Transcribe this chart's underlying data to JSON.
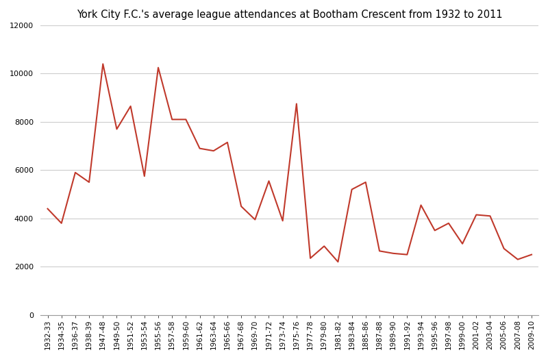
{
  "title": "York City F.C.'s average league attendances at Bootham Crescent from 1932 to 2011",
  "x_labels": [
    "1932-33",
    "1934-35",
    "1936-37",
    "1938-39",
    "1947-48",
    "1949-50",
    "1951-52",
    "1953-54",
    "1955-56",
    "1957-58",
    "1959-60",
    "1961-62",
    "1963-64",
    "1965-66",
    "1967-68",
    "1969-70",
    "1971-72",
    "1973-74",
    "1975-76",
    "1977-78",
    "1979-80",
    "1981-82",
    "1983-84",
    "1885-86",
    "1987-88",
    "1989-90",
    "1991-92",
    "1993-94",
    "1995-96",
    "1997-98",
    "1999-00",
    "2001-02",
    "2003-04",
    "2005-06",
    "2007-08",
    "2009-10"
  ],
  "attendances": [
    4400,
    3800,
    5900,
    5500,
    10400,
    7700,
    8650,
    5750,
    10250,
    8100,
    8100,
    6900,
    6800,
    7150,
    4500,
    3950,
    5550,
    3900,
    8750,
    2350,
    2850,
    2200,
    5200,
    5500,
    2650,
    2550,
    2500,
    4550,
    3500,
    3800,
    2950,
    4150,
    4100,
    2750,
    2300,
    2500
  ],
  "line_color": "#c0392b",
  "ylim": [
    0,
    12000
  ],
  "yticks": [
    0,
    2000,
    4000,
    6000,
    8000,
    10000,
    12000
  ],
  "background_color": "#ffffff",
  "grid_color": "#cccccc",
  "title_fontsize": 10.5,
  "tick_fontsize": 7.5
}
